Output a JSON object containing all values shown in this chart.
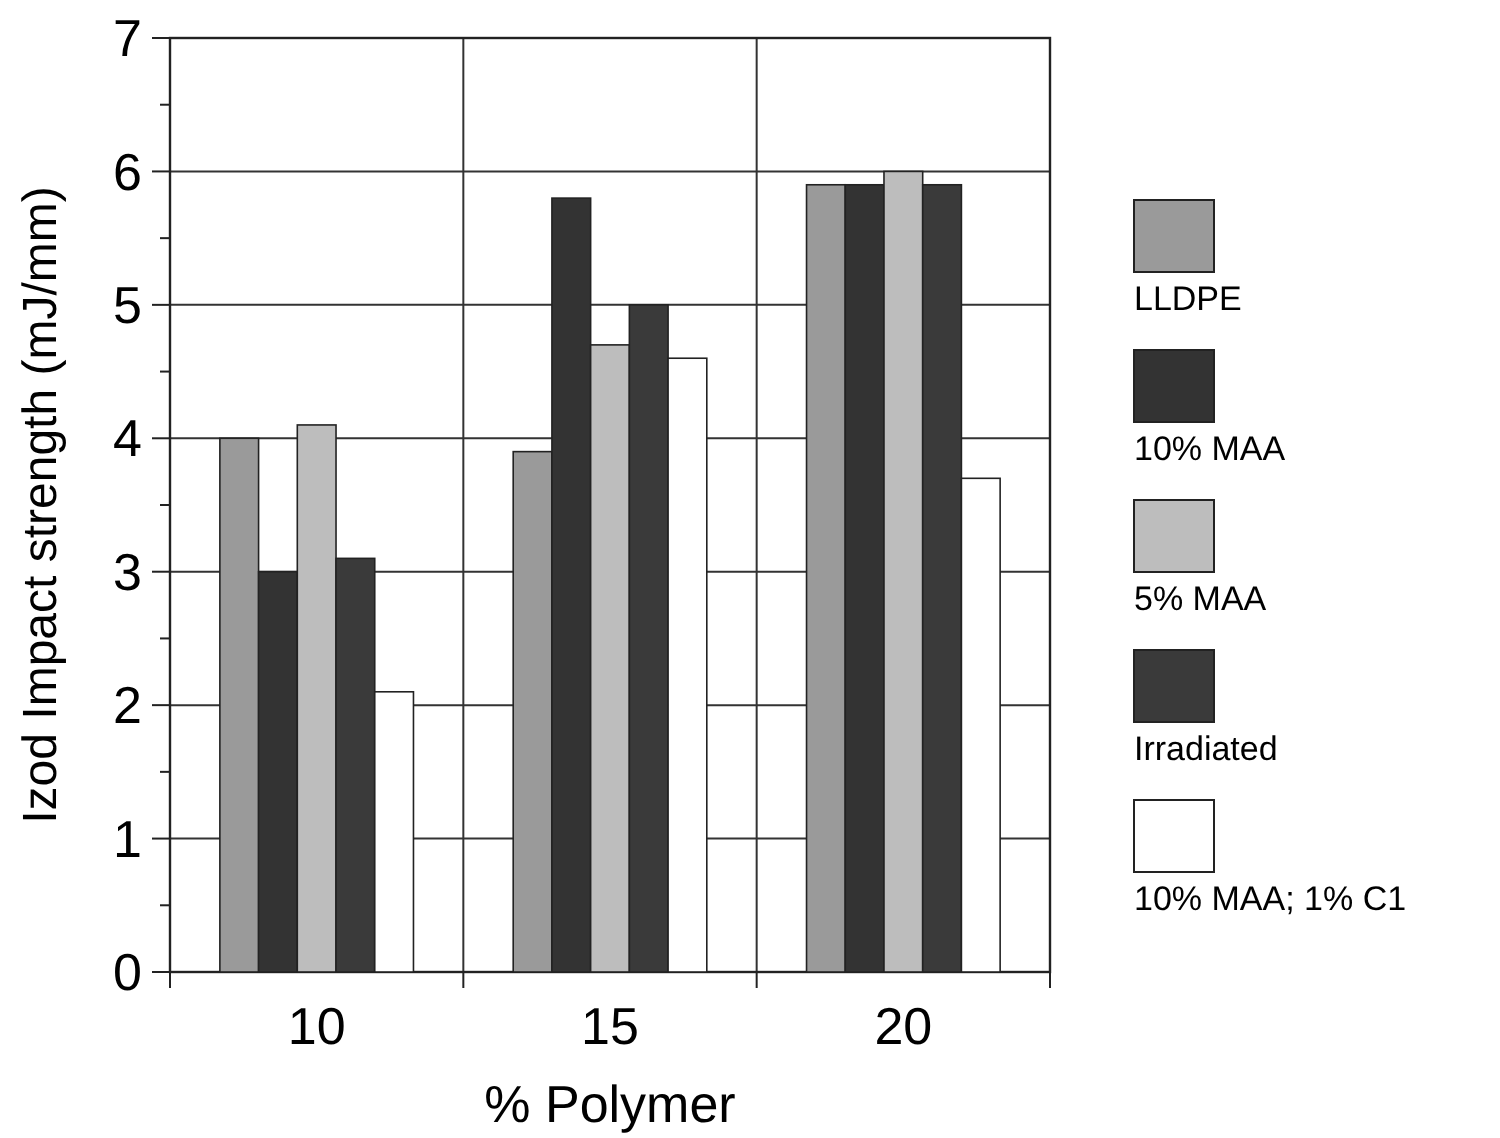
{
  "chart_data": {
    "type": "bar",
    "xlabel": "% Polymer",
    "ylabel": "Izod Impact strength (mJ/mm)",
    "categories": [
      "10",
      "15",
      "20"
    ],
    "series": [
      {
        "name": "LLDPE",
        "color": "#9a9a9a",
        "values": [
          4.0,
          3.9,
          5.9
        ]
      },
      {
        "name": "10% MAA",
        "color": "#333333",
        "values": [
          3.0,
          5.8,
          5.9
        ]
      },
      {
        "name": "5% MAA",
        "color": "#bdbdbd",
        "values": [
          4.1,
          4.7,
          6.0
        ]
      },
      {
        "name": "Irradiated",
        "color": "#3a3a3a",
        "values": [
          3.1,
          5.0,
          5.9
        ]
      },
      {
        "name": "10% MAA; 1% C1",
        "color": "#ffffff",
        "values": [
          2.1,
          4.6,
          3.7
        ]
      }
    ],
    "ylim": [
      0,
      7
    ],
    "yticks": [
      0,
      {
        "value": 0.5,
        "label": null
      },
      1,
      {
        "value": 1.5,
        "label": null
      },
      2,
      {
        "value": 2.5,
        "label": null
      },
      3,
      {
        "value": 3.5,
        "label": null
      },
      4,
      {
        "value": 4.5,
        "label": null
      },
      5,
      {
        "value": 5.5,
        "label": null
      },
      6,
      {
        "value": 6.5,
        "label": null
      },
      7
    ],
    "grid": true,
    "legend": "right"
  }
}
